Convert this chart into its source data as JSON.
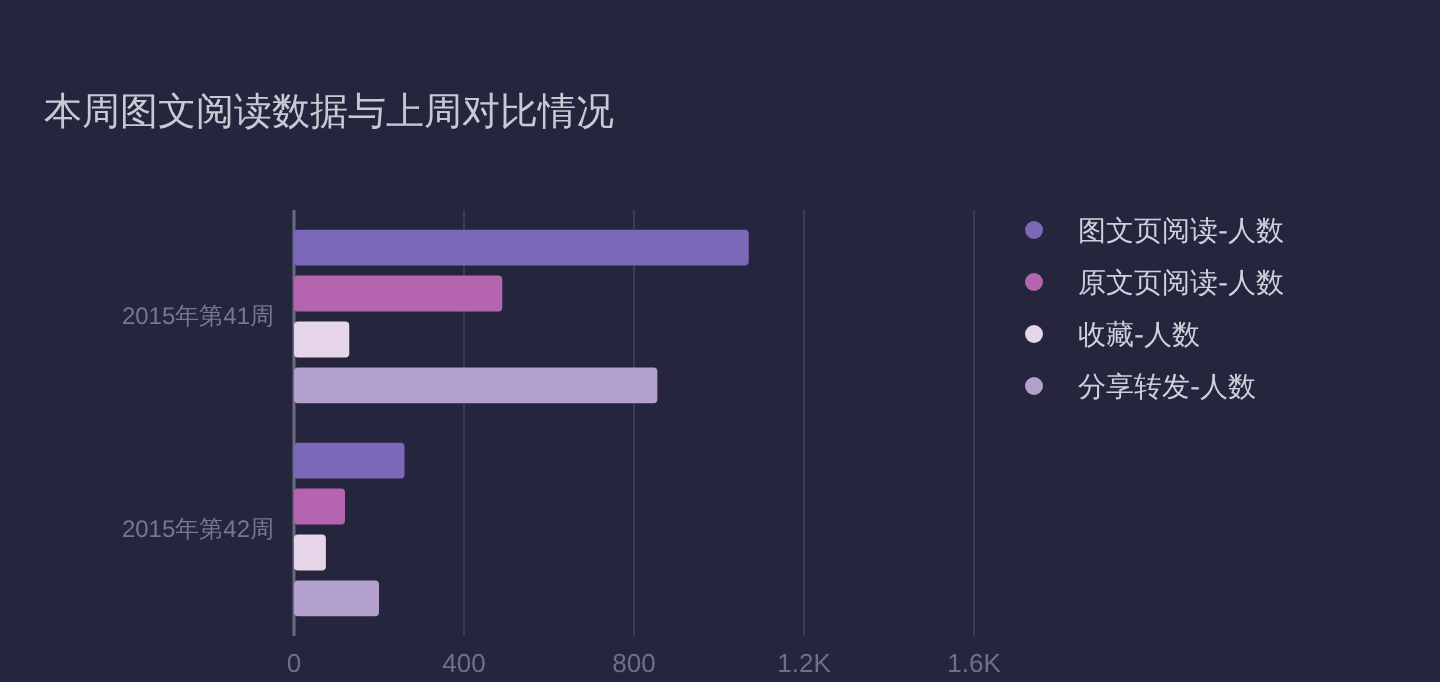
{
  "chart_data": {
    "type": "bar",
    "orientation": "horizontal",
    "title": "本周图文阅读数据与上周对比情况",
    "categories": [
      "2015年第41周",
      "2015年第42周"
    ],
    "series": [
      {
        "name": "图文页阅读-人数",
        "color": "#7b68b8",
        "values": [
          1070,
          260
        ]
      },
      {
        "name": "原文页阅读-人数",
        "color": "#b565b0",
        "values": [
          490,
          120
        ]
      },
      {
        "name": "收藏-人数",
        "color": "#e6d5e8",
        "values": [
          130,
          75
        ]
      },
      {
        "name": "分享转发-人数",
        "color": "#b3a0cc",
        "values": [
          855,
          200
        ]
      }
    ],
    "xlim": [
      0,
      1600
    ],
    "xticks": [
      0,
      400,
      800,
      {
        "value": 1200,
        "label": "1.2K"
      },
      {
        "value": 1600,
        "label": "1.6K"
      }
    ],
    "grid": "x",
    "legend": "top right"
  }
}
